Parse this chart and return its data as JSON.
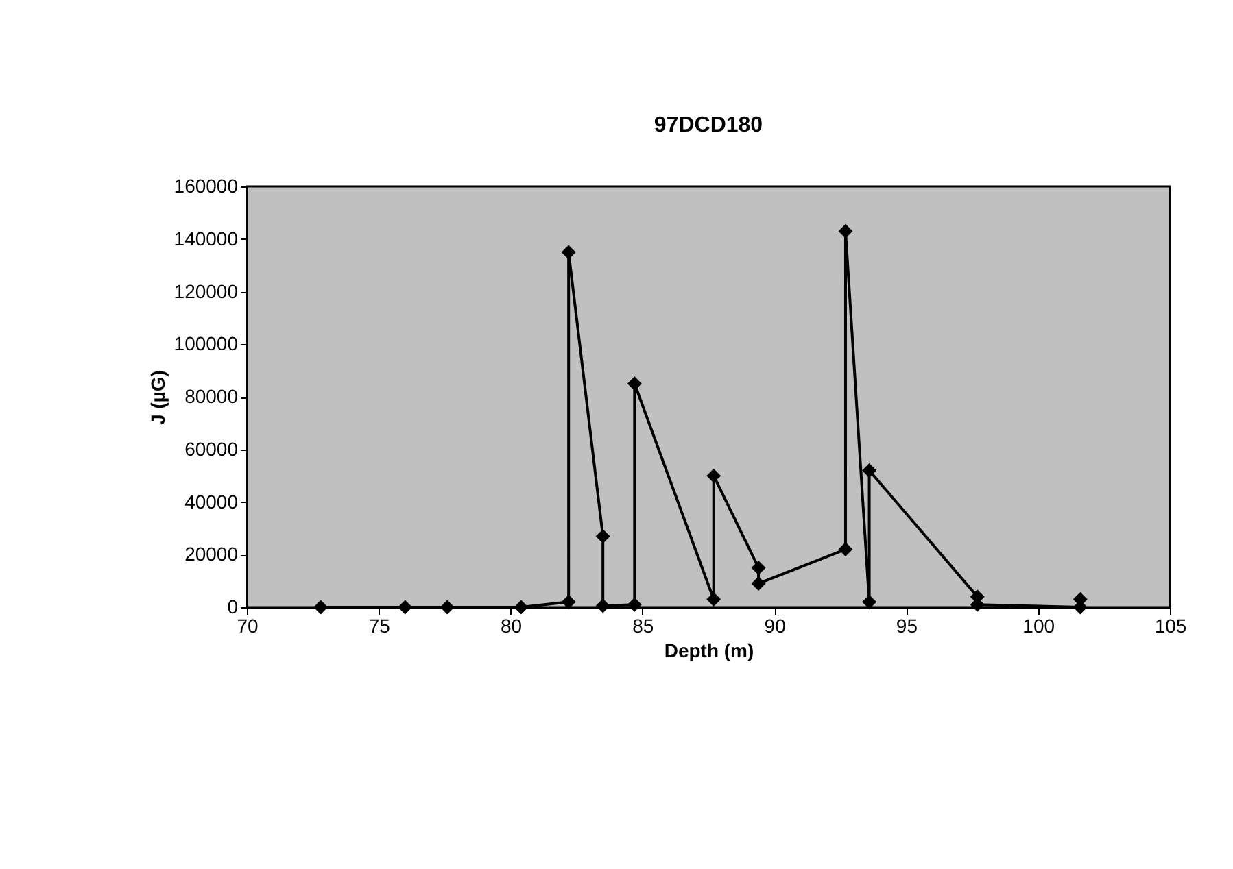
{
  "chart_data": {
    "type": "line",
    "title": "97DCD180",
    "xlabel": "Depth (m)",
    "ylabel": "J (µG)",
    "x": [
      72.8,
      76.0,
      77.6,
      80.4,
      82.2,
      82.2,
      83.5,
      83.5,
      84.7,
      84.7,
      87.7,
      87.7,
      89.4,
      89.4,
      92.7,
      92.7,
      93.6,
      93.6,
      97.7,
      97.7,
      101.6,
      101.6
    ],
    "series": [
      {
        "color": "#000000",
        "values": [
          0,
          0,
          0,
          0,
          2000,
          135000,
          27000,
          500,
          1000,
          85000,
          3000,
          50000,
          15000,
          9000,
          22000,
          143000,
          2000,
          52000,
          4000,
          1000,
          0,
          3000
        ]
      }
    ],
    "xlim": [
      70,
      105
    ],
    "xticks": [
      70,
      75,
      80,
      85,
      90,
      95,
      100,
      105
    ],
    "ylim": [
      0,
      160000
    ],
    "yticks": [
      0,
      20000,
      40000,
      60000,
      80000,
      100000,
      120000,
      140000,
      160000
    ],
    "marker": "diamond",
    "line_style": "solid",
    "grid": false
  }
}
